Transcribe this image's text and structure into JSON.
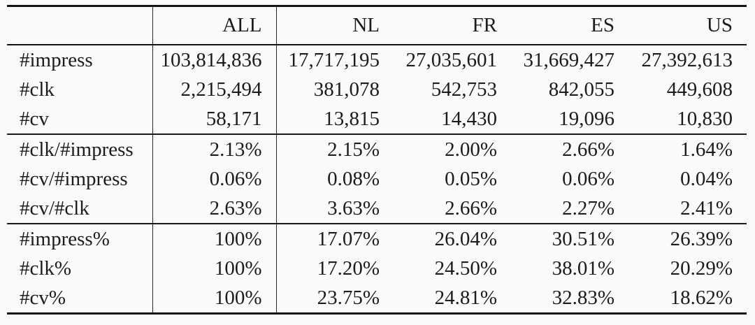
{
  "table": {
    "description": "Dataset statistics table: impressions, clicks and conversions per country",
    "columns": [
      "",
      "ALL",
      "NL",
      "FR",
      "ES",
      "US"
    ],
    "sections": [
      {
        "name": "absolute-counts",
        "rows": [
          {
            "label": "#impress",
            "values": [
              "103,814,836",
              "17,717,195",
              "27,035,601",
              "31,669,427",
              "27,392,613"
            ]
          },
          {
            "label": "#clk",
            "values": [
              "2,215,494",
              "381,078",
              "542,753",
              "842,055",
              "449,608"
            ]
          },
          {
            "label": "#cv",
            "values": [
              "58,171",
              "13,815",
              "14,430",
              "19,096",
              "10,830"
            ]
          }
        ]
      },
      {
        "name": "rates",
        "rows": [
          {
            "label": "#clk/#impress",
            "values": [
              "2.13%",
              "2.15%",
              "2.00%",
              "2.66%",
              "1.64%"
            ]
          },
          {
            "label": "#cv/#impress",
            "values": [
              "0.06%",
              "0.08%",
              "0.05%",
              "0.06%",
              "0.04%"
            ]
          },
          {
            "label": "#cv/#clk",
            "values": [
              "2.63%",
              "3.63%",
              "2.66%",
              "2.27%",
              "2.41%"
            ]
          }
        ]
      },
      {
        "name": "shares",
        "rows": [
          {
            "label": "#impress%",
            "values": [
              "100%",
              "17.07%",
              "26.04%",
              "30.51%",
              "26.39%"
            ]
          },
          {
            "label": "#clk%",
            "values": [
              "100%",
              "17.20%",
              "24.50%",
              "38.01%",
              "20.29%"
            ]
          },
          {
            "label": "#cv%",
            "values": [
              "100%",
              "23.75%",
              "24.81%",
              "32.83%",
              "18.62%"
            ]
          }
        ]
      }
    ],
    "colors": {
      "background": "#fbfaf8",
      "text": "#1c1c1c",
      "rule": "#141414"
    }
  }
}
